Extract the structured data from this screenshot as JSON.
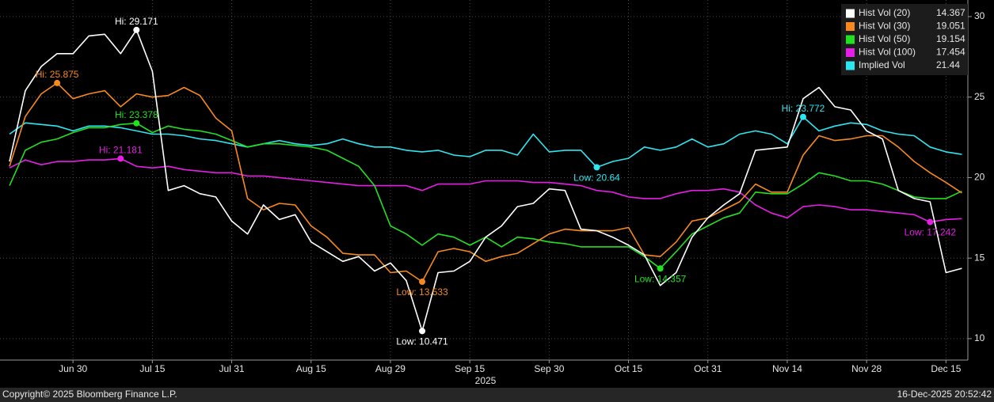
{
  "chart_data": {
    "type": "line",
    "xlabel": "2025",
    "footer_left": "Copyright© 2025 Bloomberg Finance L.P.",
    "footer_right": "16-Dec-2025 20:52:42",
    "grid": true,
    "legend": "upper right",
    "ylim": [
      8.67,
      31.03
    ],
    "yticks": [
      10,
      15,
      20,
      25,
      30
    ],
    "categories": [
      null,
      null,
      null,
      null,
      "Jun 30",
      null,
      null,
      null,
      null,
      "Jul 15",
      null,
      null,
      null,
      null,
      "Jul 31",
      null,
      null,
      null,
      null,
      "Aug 15",
      null,
      null,
      null,
      null,
      "Aug 29",
      null,
      null,
      null,
      null,
      "Sep 15",
      null,
      null,
      null,
      null,
      "Sep 30",
      null,
      null,
      null,
      null,
      "Oct 15",
      null,
      null,
      null,
      null,
      "Oct 31",
      null,
      null,
      null,
      null,
      "Nov 14",
      null,
      null,
      null,
      null,
      "Nov 28",
      null,
      null,
      null,
      null,
      "Dec 15",
      null
    ],
    "series": [
      {
        "name": "Hist Vol (20)",
        "color": "#ffffff",
        "values": [
          21.0,
          25.4,
          26.9,
          27.7,
          27.7,
          28.8,
          28.9,
          27.7,
          29.171,
          26.6,
          19.2,
          19.5,
          19.0,
          18.8,
          17.3,
          16.5,
          18.3,
          17.4,
          17.7,
          16.0,
          15.4,
          14.8,
          15.1,
          14.2,
          14.7,
          13.6,
          10.471,
          14.1,
          14.2,
          14.8,
          16.3,
          17.0,
          18.2,
          18.4,
          19.3,
          19.2,
          16.8,
          16.7,
          16.3,
          15.8,
          15.2,
          13.3,
          14.1,
          16.3,
          17.5,
          18.3,
          19.0,
          21.7,
          21.8,
          21.9,
          24.9,
          25.6,
          24.4,
          24.2,
          22.9,
          22.4,
          19.2,
          18.7,
          18.5,
          14.1,
          14.367
        ],
        "value_labels": [
          null,
          null,
          null,
          null,
          null,
          null,
          null,
          null,
          "Hi: 29.171",
          null,
          null,
          null,
          null,
          null,
          null,
          null,
          null,
          null,
          null,
          null,
          null,
          null,
          null,
          null,
          null,
          null,
          "Low: 10.471",
          null,
          null,
          null,
          null,
          null,
          null,
          null,
          null,
          null,
          null,
          null,
          null,
          null,
          null,
          null,
          null,
          null,
          null,
          null,
          null,
          null,
          null,
          null,
          null,
          null,
          null,
          null,
          null,
          null,
          null,
          null,
          null,
          null,
          null
        ]
      },
      {
        "name": "Hist Vol (30)",
        "color": "#f7891f",
        "values": [
          20.7,
          23.8,
          25.2,
          25.875,
          24.9,
          25.2,
          25.4,
          24.4,
          25.2,
          25.0,
          25.1,
          25.6,
          25.1,
          23.7,
          22.9,
          18.7,
          18.0,
          18.4,
          18.3,
          17.0,
          16.3,
          15.3,
          15.2,
          15.2,
          14.1,
          14.2,
          13.533,
          15.4,
          15.6,
          15.4,
          14.8,
          15.1,
          15.3,
          15.9,
          16.5,
          16.8,
          16.7,
          16.7,
          16.7,
          16.9,
          15.2,
          15.1,
          16.0,
          17.3,
          17.5,
          18.0,
          18.5,
          19.6,
          19.1,
          19.1,
          21.4,
          22.6,
          22.3,
          22.4,
          22.6,
          22.6,
          21.9,
          21.0,
          20.3,
          19.7,
          19.051
        ],
        "value_labels": [
          null,
          null,
          null,
          "Hi: 25.875",
          null,
          null,
          null,
          null,
          null,
          null,
          null,
          null,
          null,
          null,
          null,
          null,
          null,
          null,
          null,
          null,
          null,
          null,
          null,
          null,
          null,
          null,
          "Low: 13.533",
          null,
          null,
          null,
          null,
          null,
          null,
          null,
          null,
          null,
          null,
          null,
          null,
          null,
          null,
          null,
          null,
          null,
          null,
          null,
          null,
          null,
          null,
          null,
          null,
          null,
          null,
          null,
          null,
          null,
          null,
          null,
          null,
          null,
          null
        ]
      },
      {
        "name": "Hist Vol (50)",
        "color": "#22e022",
        "values": [
          19.5,
          21.7,
          22.2,
          22.4,
          22.8,
          23.1,
          23.1,
          23.3,
          23.378,
          22.8,
          23.2,
          23.0,
          22.9,
          22.7,
          22.3,
          21.9,
          22.1,
          22.1,
          22.0,
          21.9,
          21.7,
          21.2,
          20.7,
          19.5,
          17.0,
          16.5,
          15.8,
          16.5,
          16.3,
          15.8,
          16.3,
          15.7,
          16.3,
          16.2,
          16.0,
          15.9,
          15.7,
          15.7,
          15.7,
          15.7,
          15.1,
          14.357,
          15.4,
          16.5,
          17.0,
          17.5,
          17.8,
          19.1,
          19.0,
          19.0,
          19.6,
          20.3,
          20.1,
          19.8,
          19.8,
          19.6,
          19.2,
          18.8,
          18.7,
          18.7,
          19.154
        ],
        "value_labels": [
          null,
          null,
          null,
          null,
          null,
          null,
          null,
          null,
          "Hi: 23.378",
          null,
          null,
          null,
          null,
          null,
          null,
          null,
          null,
          null,
          null,
          null,
          null,
          null,
          null,
          null,
          null,
          null,
          null,
          null,
          null,
          null,
          null,
          null,
          null,
          null,
          null,
          null,
          null,
          null,
          null,
          null,
          null,
          "Low: 14.357",
          null,
          null,
          null,
          null,
          null,
          null,
          null,
          null,
          null,
          null,
          null,
          null,
          null,
          null,
          null,
          null,
          null,
          null,
          null
        ]
      },
      {
        "name": "Hist Vol (100)",
        "color": "#e61ee6",
        "values": [
          20.6,
          21.1,
          20.8,
          21.0,
          21.0,
          21.1,
          21.1,
          21.181,
          20.7,
          20.6,
          20.7,
          20.5,
          20.4,
          20.3,
          20.3,
          20.1,
          20.1,
          20.0,
          19.9,
          19.8,
          19.7,
          19.6,
          19.5,
          19.5,
          19.5,
          19.5,
          19.2,
          19.6,
          19.6,
          19.6,
          19.8,
          19.8,
          19.8,
          19.7,
          19.7,
          19.6,
          19.5,
          19.2,
          19.1,
          18.8,
          18.7,
          18.7,
          19.0,
          19.2,
          19.2,
          19.3,
          19.1,
          18.3,
          17.8,
          17.5,
          18.2,
          18.3,
          18.2,
          18.0,
          18.0,
          17.9,
          17.8,
          17.7,
          17.242,
          17.4,
          17.454
        ],
        "value_labels": [
          null,
          null,
          null,
          null,
          null,
          null,
          null,
          "Hi: 21.181",
          null,
          null,
          null,
          null,
          null,
          null,
          null,
          null,
          null,
          null,
          null,
          null,
          null,
          null,
          null,
          null,
          null,
          null,
          null,
          null,
          null,
          null,
          null,
          null,
          null,
          null,
          null,
          null,
          null,
          null,
          null,
          null,
          null,
          null,
          null,
          null,
          null,
          null,
          null,
          null,
          null,
          null,
          null,
          null,
          null,
          null,
          null,
          null,
          null,
          null,
          "Low: 17.242",
          null,
          null
        ]
      },
      {
        "name": "Implied Vol",
        "color": "#2ee6f0",
        "values": [
          22.7,
          23.4,
          23.3,
          23.2,
          22.9,
          23.2,
          23.2,
          23.1,
          22.9,
          22.7,
          22.7,
          22.6,
          22.4,
          22.3,
          22.1,
          21.9,
          22.1,
          22.3,
          22.1,
          22.0,
          22.1,
          22.4,
          22.1,
          21.9,
          21.9,
          21.7,
          21.6,
          21.7,
          21.4,
          21.3,
          21.7,
          21.7,
          21.4,
          22.7,
          21.6,
          21.7,
          21.7,
          20.64,
          21.0,
          21.2,
          21.9,
          21.7,
          21.9,
          22.4,
          21.9,
          22.1,
          22.7,
          22.9,
          22.7,
          22.1,
          23.772,
          22.9,
          23.2,
          23.4,
          23.3,
          22.9,
          22.7,
          22.6,
          21.9,
          21.6,
          21.44
        ],
        "value_labels": [
          null,
          null,
          null,
          null,
          null,
          null,
          null,
          null,
          null,
          null,
          null,
          null,
          null,
          null,
          null,
          null,
          null,
          null,
          null,
          null,
          null,
          null,
          null,
          null,
          null,
          null,
          null,
          null,
          null,
          null,
          null,
          null,
          null,
          null,
          null,
          null,
          null,
          "Low: 20.64",
          null,
          null,
          null,
          null,
          null,
          null,
          null,
          null,
          null,
          null,
          null,
          null,
          "Hi: 23.772",
          null,
          null,
          null,
          null,
          null,
          null,
          null,
          null,
          null,
          null
        ]
      }
    ]
  }
}
